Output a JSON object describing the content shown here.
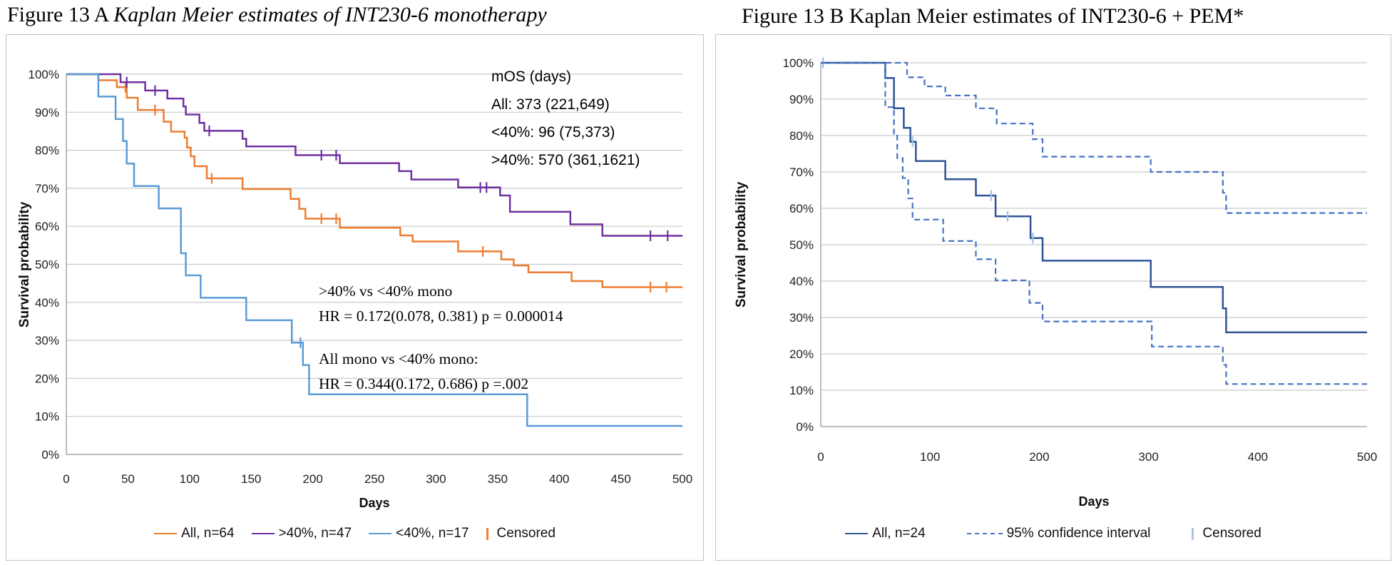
{
  "chart_data": [
    {
      "type": "line",
      "variant": "kaplan-meier-step",
      "title_prefix": "Figure 13 A ",
      "title_italic": "Kaplan Meier estimates of INT230-6 monotherapy",
      "xlabel": "Days",
      "ylabel": "Survival probability",
      "xlim": [
        0,
        500
      ],
      "ylim": [
        0,
        100
      ],
      "x_ticks": [
        0,
        50,
        100,
        150,
        200,
        250,
        300,
        350,
        400,
        450,
        500
      ],
      "y_tick_step": 10,
      "y_tick_suffix": "%",
      "grid": true,
      "legend_position": "bottom",
      "series": [
        {
          "name": "All, n=64",
          "color": "#ED7D31",
          "style": "solid",
          "steps": [
            [
              0,
              100
            ],
            [
              26,
              98.4
            ],
            [
              41,
              96.6
            ],
            [
              49,
              93.8
            ],
            [
              58,
              90.6
            ],
            [
              79,
              87.5
            ],
            [
              85,
              84.9
            ],
            [
              96,
              83.3
            ],
            [
              98,
              80.7
            ],
            [
              101,
              78.4
            ],
            [
              104,
              75.8
            ],
            [
              114,
              72.6
            ],
            [
              143,
              69.8
            ],
            [
              182,
              67.2
            ],
            [
              189,
              64.6
            ],
            [
              194,
              62
            ],
            [
              222,
              59.6
            ],
            [
              271,
              57.6
            ],
            [
              281,
              56
            ],
            [
              318,
              53.4
            ],
            [
              353,
              51.3
            ],
            [
              363,
              49.7
            ],
            [
              375,
              47.9
            ],
            [
              410,
              45.6
            ],
            [
              435,
              44
            ],
            [
              500,
              44
            ]
          ],
          "censored": [
            [
              48,
              96.6
            ],
            [
              72,
              90.6
            ],
            [
              118,
              72.6
            ],
            [
              207,
              62
            ],
            [
              219,
              62
            ],
            [
              338,
              53.4
            ],
            [
              474,
              44
            ],
            [
              487,
              44
            ]
          ]
        },
        {
          "name": ">40%, n=47",
          "color": "#7030A0",
          "style": "solid",
          "steps": [
            [
              0,
              100
            ],
            [
              44,
              97.9
            ],
            [
              64,
              95.7
            ],
            [
              82,
              93.6
            ],
            [
              95,
              91.5
            ],
            [
              97,
              89.4
            ],
            [
              108,
              87.2
            ],
            [
              112,
              85.1
            ],
            [
              143,
              83
            ],
            [
              146,
              81
            ],
            [
              186,
              78.7
            ],
            [
              222,
              76.6
            ],
            [
              270,
              74.5
            ],
            [
              280,
              72.3
            ],
            [
              318,
              70.2
            ],
            [
              352,
              68.1
            ],
            [
              360,
              63.8
            ],
            [
              409,
              60.5
            ],
            [
              435,
              57.5
            ],
            [
              500,
              57.5
            ]
          ],
          "censored": [
            [
              49,
              97.9
            ],
            [
              72,
              95.7
            ],
            [
              116,
              85.1
            ],
            [
              207,
              78.7
            ],
            [
              219,
              78.7
            ],
            [
              336,
              70.2
            ],
            [
              341,
              70.2
            ],
            [
              474,
              57.5
            ],
            [
              488,
              57.5
            ]
          ]
        },
        {
          "name": "<40%, n=17",
          "color": "#5B9BD5",
          "style": "solid",
          "steps": [
            [
              0,
              100
            ],
            [
              26,
              94.1
            ],
            [
              40,
              88.2
            ],
            [
              46,
              82.4
            ],
            [
              49,
              76.5
            ],
            [
              55,
              70.6
            ],
            [
              75,
              64.7
            ],
            [
              93,
              52.9
            ],
            [
              97,
              47.1
            ],
            [
              109,
              41.2
            ],
            [
              146,
              35.3
            ],
            [
              183,
              29.4
            ],
            [
              192,
              23.5
            ],
            [
              197,
              15.8
            ],
            [
              374,
              7.5
            ],
            [
              500,
              7.5
            ]
          ],
          "censored": [
            [
              190,
              29.4
            ]
          ]
        }
      ],
      "censored_legend": {
        "label": "Censored",
        "color": "#ED7D31"
      },
      "annotations": {
        "mos_lines": [
          "mOS (days)",
          "All: 373 (221,649)",
          "<40%: 96 (75,373)",
          ">40%: 570 (361,1621)"
        ],
        "hr1_lines": [
          ">40% vs <40% mono",
          "HR = 0.172(0.078, 0.381) p = 0.000014"
        ],
        "hr2_lines": [
          "All mono vs <40% mono:",
          "HR = 0.344(0.172, 0.686) p =.002"
        ]
      }
    },
    {
      "type": "line",
      "variant": "kaplan-meier-step",
      "title": "Figure 13 B Kaplan Meier estimates of INT230-6 + PEM*",
      "xlabel": "Days",
      "ylabel": "Survival probability",
      "xlim": [
        0,
        500
      ],
      "ylim": [
        0,
        100
      ],
      "x_ticks": [
        0,
        100,
        200,
        300,
        400,
        500
      ],
      "y_tick_step": 10,
      "y_tick_suffix": "%",
      "grid": true,
      "legend_position": "bottom",
      "series": [
        {
          "name": "All, n=24",
          "color": "#2F5496",
          "style": "solid",
          "censor_color": "#9DC3E6",
          "steps": [
            [
              0,
              100
            ],
            [
              59,
              95.8
            ],
            [
              67,
              87.5
            ],
            [
              76,
              82.1
            ],
            [
              82,
              78.3
            ],
            [
              87,
              73
            ],
            [
              114,
              68
            ],
            [
              142,
              63.5
            ],
            [
              160,
              57.8
            ],
            [
              192,
              51.8
            ],
            [
              203,
              45.6
            ],
            [
              302,
              38.4
            ],
            [
              368,
              32.5
            ],
            [
              371,
              25.9
            ],
            [
              500,
              25.9
            ]
          ],
          "censored": [
            [
              2,
              100
            ],
            [
              84,
              78.3
            ],
            [
              156,
              63.5
            ],
            [
              171,
              57.8
            ],
            [
              194,
              51.8
            ]
          ]
        },
        {
          "name": "95% confidence interval",
          "color": "#4472C4",
          "style": "dashed",
          "steps": [
            [
              0,
              100
            ],
            [
              79,
              96
            ],
            [
              95,
              93.5
            ],
            [
              114,
              91
            ],
            [
              142,
              87.5
            ],
            [
              161,
              83.3
            ],
            [
              194,
              79
            ],
            [
              203,
              74.2
            ],
            [
              302,
              70
            ],
            [
              368,
              64.3
            ],
            [
              371,
              58.7
            ],
            [
              500,
              58.7
            ]
          ],
          "censored": []
        },
        {
          "name": "95% confidence interval (lower)",
          "color": "#4472C4",
          "style": "dashed",
          "in_legend": false,
          "steps": [
            [
              0,
              100
            ],
            [
              59,
              87.8
            ],
            [
              67,
              80
            ],
            [
              70,
              73.8
            ],
            [
              75,
              68.3
            ],
            [
              80,
              62.7
            ],
            [
              84,
              56.9
            ],
            [
              112,
              51
            ],
            [
              142,
              46
            ],
            [
              160,
              40.2
            ],
            [
              191,
              34
            ],
            [
              203,
              28.9
            ],
            [
              303,
              22
            ],
            [
              368,
              17
            ],
            [
              371,
              11.7
            ],
            [
              500,
              11.7
            ]
          ],
          "censored": []
        }
      ],
      "censored_legend": {
        "label": "Censored",
        "color": "#A9C4E4"
      }
    }
  ]
}
